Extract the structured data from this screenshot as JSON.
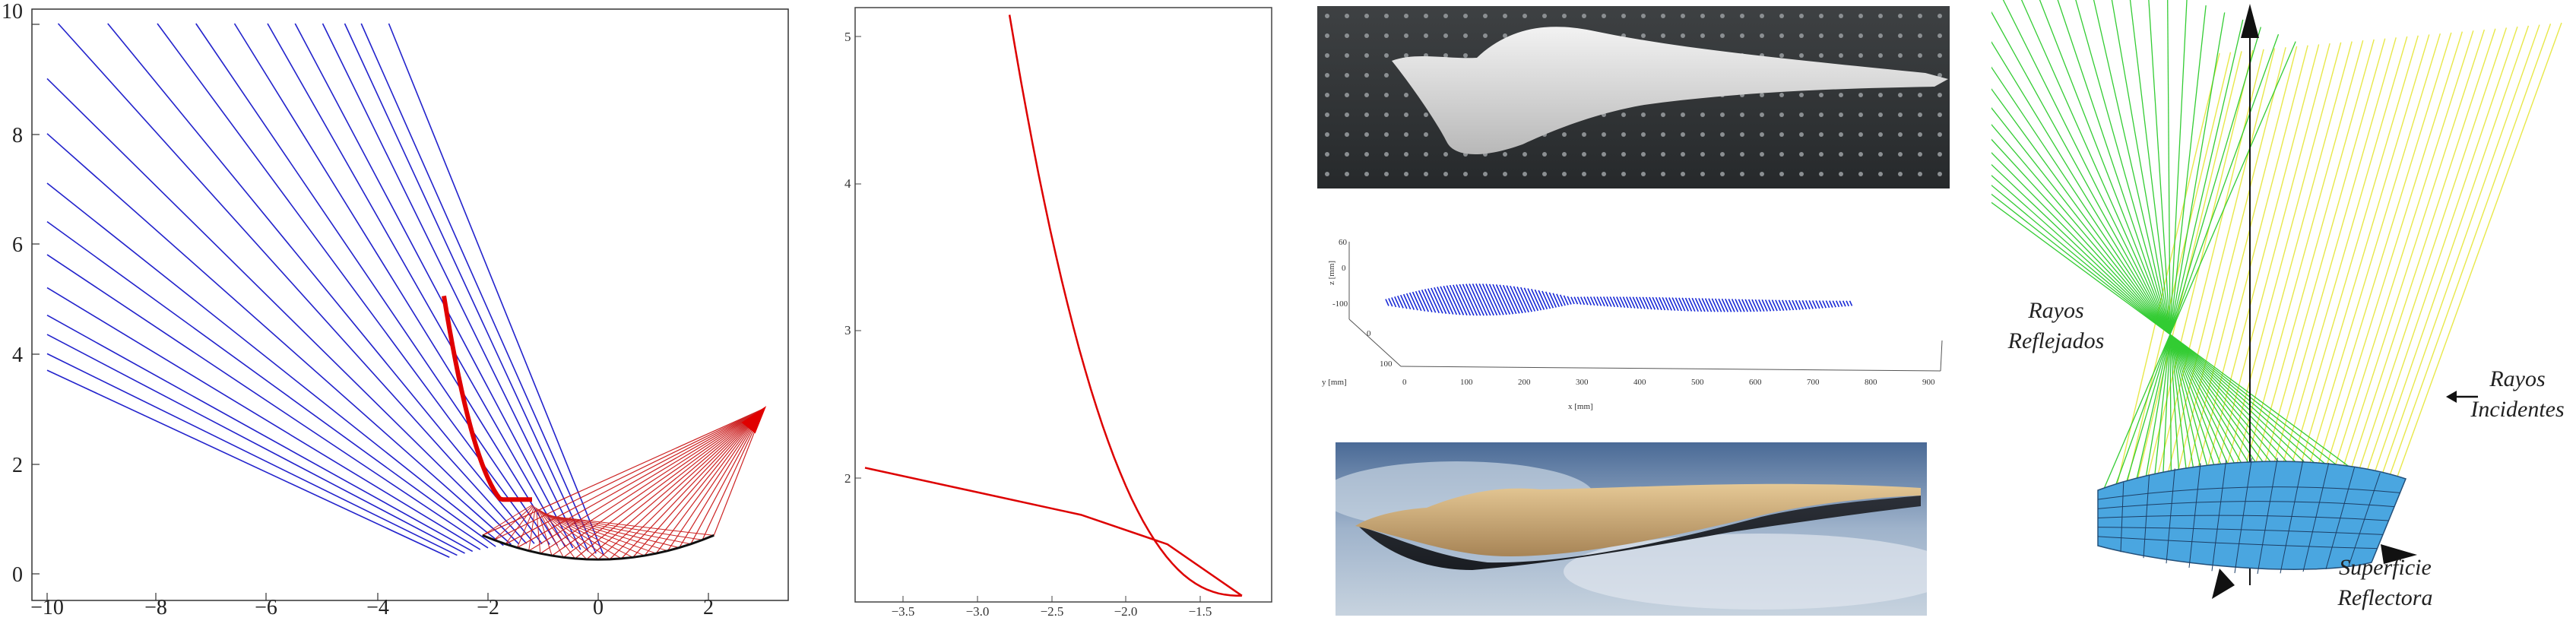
{
  "panel1": {
    "x_ticks": [
      "−10",
      "−8",
      "−6",
      "−4",
      "−2",
      "0",
      "2"
    ],
    "y_ticks": [
      "0",
      "2",
      "4",
      "6",
      "8",
      "10"
    ],
    "colors": {
      "rays": "#2222cc",
      "curve": "#e00000",
      "fan": "#cc2222",
      "base": "#111111"
    }
  },
  "panel2": {
    "x_ticks": [
      "−3.5",
      "−3.0",
      "−2.5",
      "−2.0",
      "−1.5"
    ],
    "y_ticks": [
      "2",
      "3",
      "4",
      "5"
    ],
    "colors": {
      "curve": "#dd0000"
    }
  },
  "panel3": {
    "z_axis_label": "z [mm]",
    "y_axis_label": "y [mm]",
    "x_axis_label": "x [mm]",
    "z_ticks": [
      "60",
      "0",
      "-100"
    ],
    "y_ticks": [
      "0",
      "100"
    ],
    "x_ticks": [
      "0",
      "100",
      "200",
      "300",
      "400",
      "500",
      "600",
      "700",
      "800",
      "900"
    ],
    "colors": {
      "blade": "#1a2bd6"
    }
  },
  "panel4": {
    "label_reflected_1": "Rayos",
    "label_reflected_2": "Reflejados",
    "label_incident_1": "Rayos",
    "label_incident_2": "Incidentes",
    "label_surface_1": "Superficie",
    "label_surface_2": "Reflectora",
    "colors": {
      "green": "#33cc33",
      "yellow": "#e8e84a",
      "surface": "#4aa6e0"
    }
  }
}
